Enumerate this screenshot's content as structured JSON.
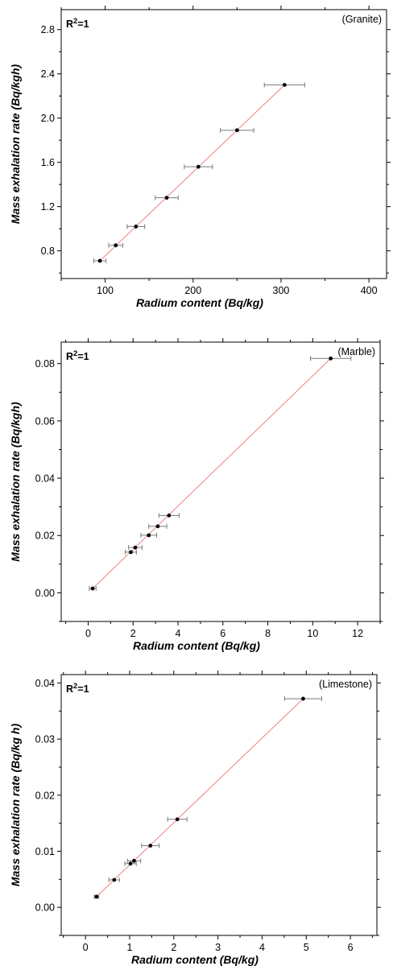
{
  "chart_data": [
    {
      "type": "scatter",
      "title": "(Granite)",
      "annotation": "R2=1",
      "xlabel": "Radium content (Bq/kg)",
      "ylabel": "Mass exhalation rate (Bq/kgh)",
      "xlim": [
        50,
        420
      ],
      "ylim": [
        0.55,
        2.98
      ],
      "xticks": [
        "100",
        "200",
        "300",
        "400"
      ],
      "xtick_values": [
        100,
        200,
        300,
        400
      ],
      "yticks": [
        "0.8",
        "1.2",
        "1.6",
        "2.0",
        "2.4",
        "2.8"
      ],
      "ytick_values": [
        0.8,
        1.2,
        1.6,
        2.0,
        2.4,
        2.8
      ],
      "points": [
        {
          "x": 94,
          "y": 0.71,
          "xerr": 7
        },
        {
          "x": 112,
          "y": 0.85,
          "xerr": 8
        },
        {
          "x": 135,
          "y": 1.02,
          "xerr": 10
        },
        {
          "x": 170,
          "y": 1.28,
          "xerr": 13
        },
        {
          "x": 206,
          "y": 1.56,
          "xerr": 16
        },
        {
          "x": 250,
          "y": 1.89,
          "xerr": 19
        },
        {
          "x": 304,
          "y": 2.3,
          "xerr": 23
        }
      ],
      "fit": {
        "x": [
          94,
          304
        ],
        "y": [
          0.71,
          2.3
        ]
      },
      "grid": false
    },
    {
      "type": "scatter",
      "title": "(Marble)",
      "annotation": "R2=1",
      "xlabel": "Radium content (Bq/kg)",
      "ylabel": "Mass exhalation rate (Bq/kgh)",
      "xlim": [
        -1.2,
        13
      ],
      "ylim": [
        -0.01,
        0.0875
      ],
      "xticks": [
        "0",
        "2",
        "4",
        "6",
        "8",
        "10",
        "12"
      ],
      "xtick_values": [
        0,
        2,
        4,
        6,
        8,
        10,
        12
      ],
      "yticks": [
        "0.00",
        "0.02",
        "0.04",
        "0.06",
        "0.08"
      ],
      "ytick_values": [
        0.0,
        0.02,
        0.04,
        0.06,
        0.08
      ],
      "points": [
        {
          "x": 0.2,
          "y": 0.0015,
          "xerr": 0.15
        },
        {
          "x": 1.9,
          "y": 0.0142,
          "xerr": 0.25
        },
        {
          "x": 2.1,
          "y": 0.0158,
          "xerr": 0.3
        },
        {
          "x": 2.7,
          "y": 0.0201,
          "xerr": 0.35
        },
        {
          "x": 3.1,
          "y": 0.0232,
          "xerr": 0.4
        },
        {
          "x": 3.6,
          "y": 0.027,
          "xerr": 0.45
        },
        {
          "x": 10.8,
          "y": 0.0818,
          "xerr": 0.9
        }
      ],
      "fit": {
        "x": [
          0.2,
          10.8
        ],
        "y": [
          0.0015,
          0.0818
        ]
      },
      "grid": false
    },
    {
      "type": "scatter",
      "title": "(Limestone)",
      "annotation": "R2=1",
      "xlabel": "Radium content (Bq/kg)",
      "ylabel": "Mass exhalation rate (Bq/kg h)",
      "xlim": [
        -0.55,
        6.6
      ],
      "ylim": [
        -0.005,
        0.0415
      ],
      "xticks": [
        "0",
        "1",
        "2",
        "3",
        "4",
        "5",
        "6"
      ],
      "xtick_values": [
        0,
        1,
        2,
        3,
        4,
        5,
        6
      ],
      "yticks": [
        "0.00",
        "0.01",
        "0.02",
        "0.03",
        "0.04"
      ],
      "ytick_values": [
        0.0,
        0.01,
        0.02,
        0.03,
        0.04
      ],
      "points": [
        {
          "x": 0.25,
          "y": 0.0019,
          "xerr": 0.05
        },
        {
          "x": 0.65,
          "y": 0.0049,
          "xerr": 0.12
        },
        {
          "x": 1.02,
          "y": 0.0078,
          "xerr": 0.13
        },
        {
          "x": 1.1,
          "y": 0.0083,
          "xerr": 0.15
        },
        {
          "x": 1.47,
          "y": 0.011,
          "xerr": 0.2
        },
        {
          "x": 2.08,
          "y": 0.0157,
          "xerr": 0.22
        },
        {
          "x": 4.93,
          "y": 0.0372,
          "xerr": 0.42
        }
      ],
      "fit": {
        "x": [
          0.25,
          4.93
        ],
        "y": [
          0.0019,
          0.0372
        ]
      },
      "grid": false
    }
  ],
  "colors": {
    "fit_line": "#f08080",
    "marker": "#000000",
    "errorbar": "#7a7a7a",
    "axis": "#000000"
  }
}
